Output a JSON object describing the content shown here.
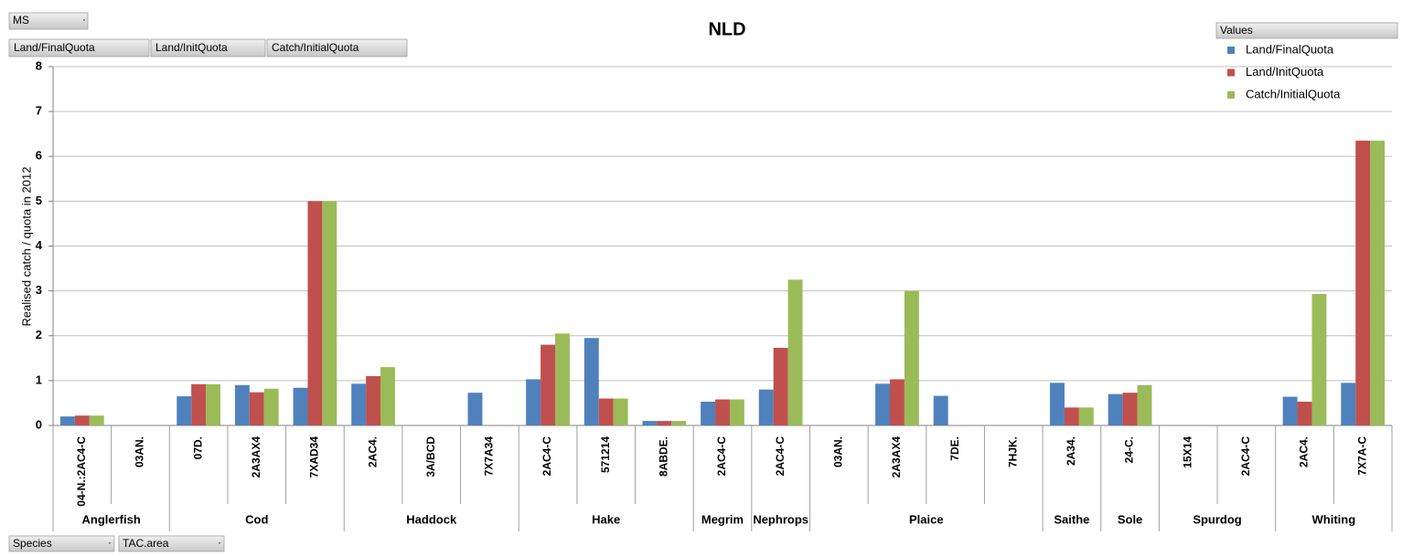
{
  "chart_data": {
    "type": "bar",
    "title": "NLD",
    "filter_field": "MS",
    "series_buttons": [
      "Land/FinalQuota",
      "Land/InitQuota",
      "Catch/InitialQuota"
    ],
    "legend_title": "Values",
    "axis_fields": [
      "Species",
      "TAC.area"
    ],
    "y_label": "Realised catch / quota in 2012",
    "ylim": [
      0,
      8
    ],
    "yticks": [
      0,
      1,
      2,
      3,
      4,
      5,
      6,
      7,
      8
    ],
    "grid": true,
    "legend": "top-right",
    "groups": [
      {
        "name": "Anglerfish",
        "categories": [
          "04-N.:2AC4-C",
          "03AN."
        ]
      },
      {
        "name": "Cod",
        "categories": [
          "07D.",
          "2A3AX4",
          "7XAD34"
        ]
      },
      {
        "name": "Haddock",
        "categories": [
          "2AC4.",
          "3A/BCD",
          "7X7A34"
        ]
      },
      {
        "name": "Hake",
        "categories": [
          "2AC4-C",
          "571214",
          "8ABDE."
        ]
      },
      {
        "name": "Megrim",
        "categories": [
          "2AC4-C"
        ]
      },
      {
        "name": "Nephrops",
        "categories": [
          "2AC4-C"
        ]
      },
      {
        "name": "Plaice",
        "categories": [
          "03AN.",
          "2A3AX4",
          "7DE.",
          "7HJK."
        ]
      },
      {
        "name": "Saithe",
        "categories": [
          "2A34."
        ]
      },
      {
        "name": "Sole",
        "categories": [
          "24-C."
        ]
      },
      {
        "name": "Spurdog",
        "categories": [
          "15X14",
          "2AC4-C"
        ]
      },
      {
        "name": "Whiting",
        "categories": [
          "2AC4.",
          "7X7A-C"
        ]
      }
    ],
    "series": [
      {
        "name": "Land/FinalQuota",
        "color": "#4f81bd",
        "values": [
          0.2,
          null,
          0.65,
          0.9,
          0.84,
          0.93,
          null,
          0.73,
          1.03,
          1.95,
          0.1,
          0.53,
          0.8,
          null,
          0.93,
          0.66,
          null,
          0.95,
          0.7,
          null,
          null,
          0.64,
          0.95
        ]
      },
      {
        "name": "Land/InitQuota",
        "color": "#c0504d",
        "values": [
          0.22,
          null,
          0.92,
          0.74,
          5.0,
          1.1,
          null,
          null,
          1.8,
          0.6,
          0.1,
          0.58,
          1.73,
          null,
          1.03,
          null,
          null,
          0.4,
          0.73,
          null,
          null,
          0.53,
          6.35
        ]
      },
      {
        "name": "Catch/InitialQuota",
        "color": "#9bbb59",
        "values": [
          0.22,
          null,
          0.92,
          0.82,
          5.0,
          1.3,
          null,
          null,
          2.05,
          0.6,
          0.1,
          0.58,
          3.25,
          null,
          3.0,
          null,
          null,
          0.4,
          0.9,
          null,
          null,
          2.93,
          6.35
        ]
      }
    ]
  }
}
